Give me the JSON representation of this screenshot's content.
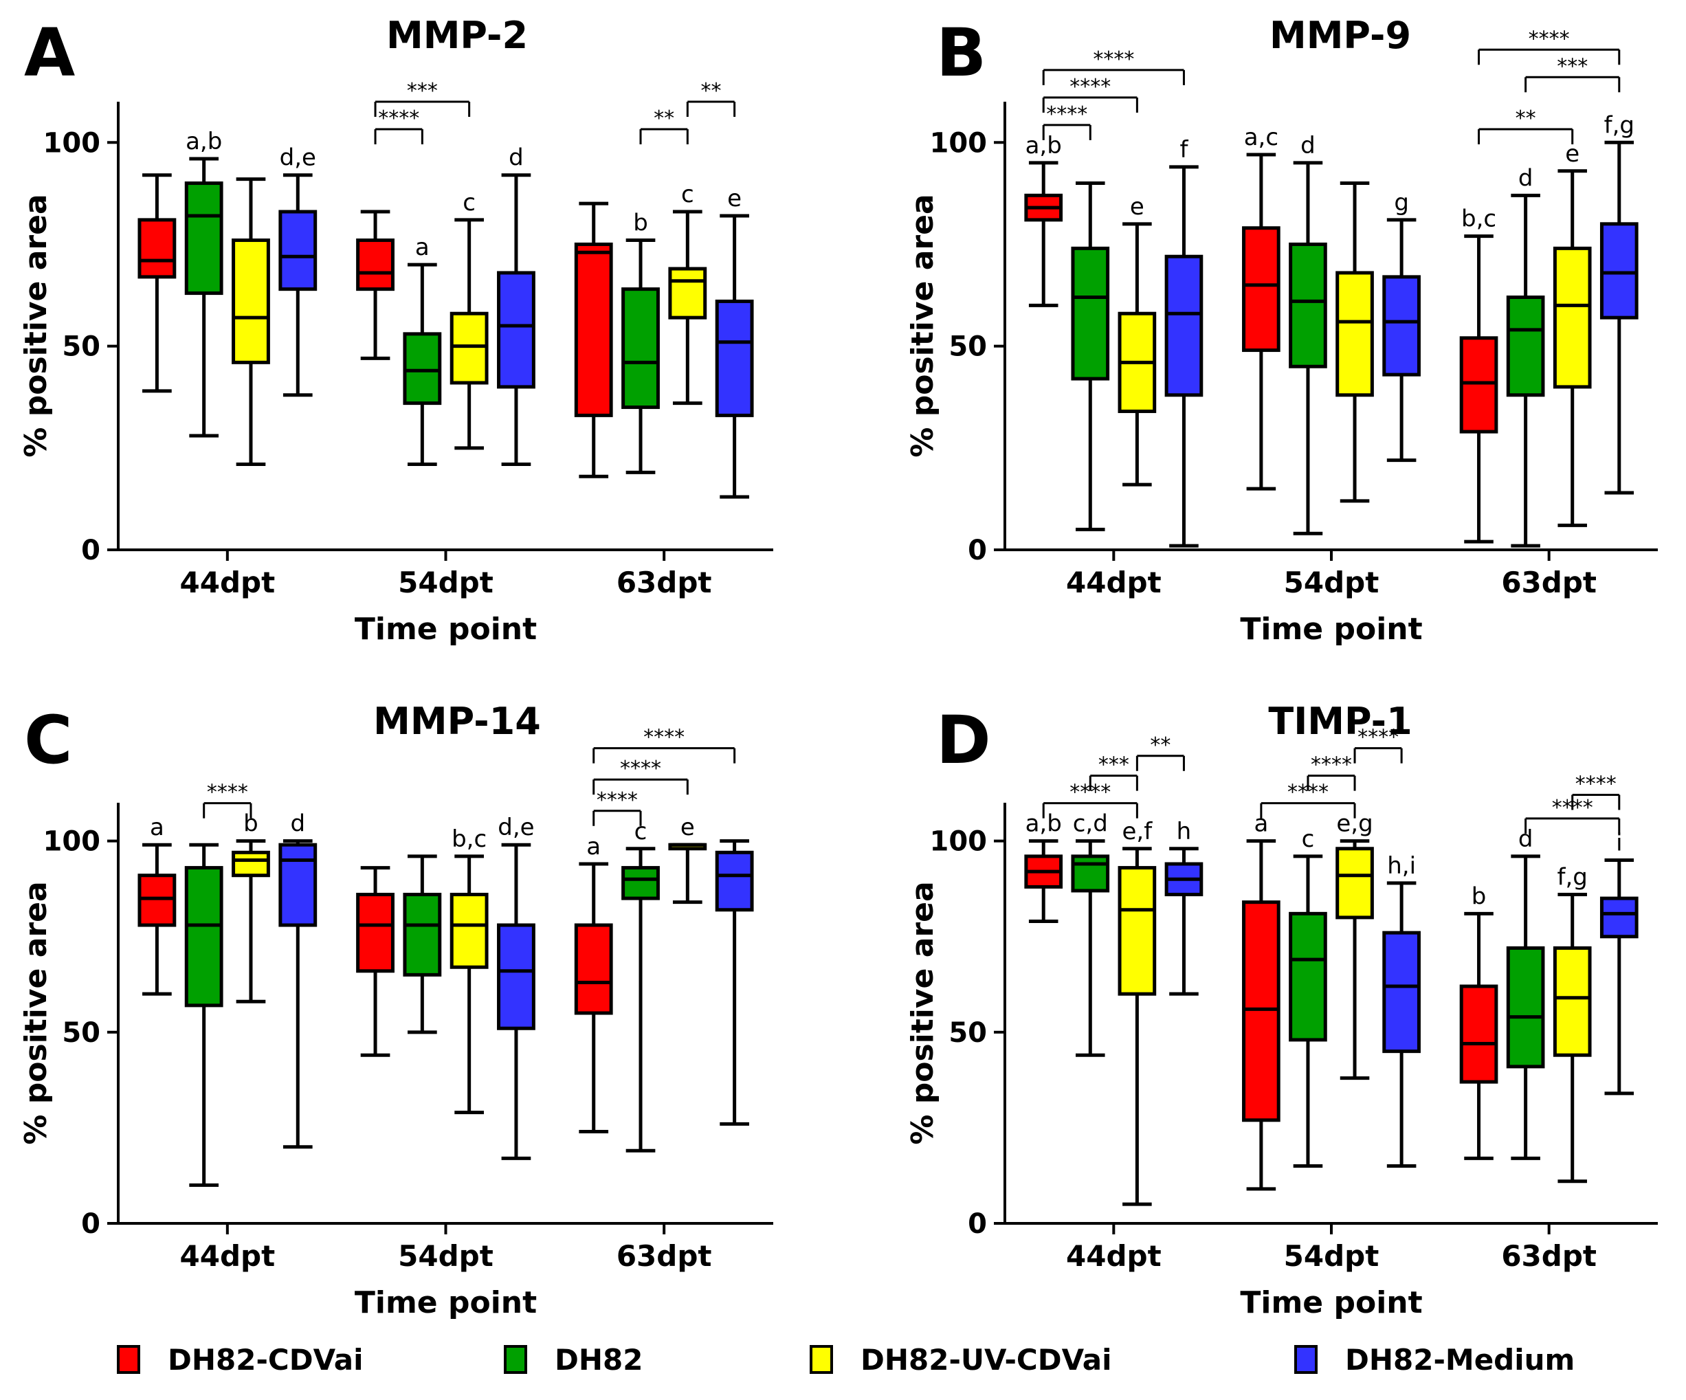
{
  "colors": {
    "DH82-CDVai": "#ff0000",
    "DH82": "#00a000",
    "DH82-UV-CDVai": "#ffff00",
    "DH82-Medium": "#3333ff"
  },
  "legend": [
    {
      "name": "DH82-CDVai",
      "color": "#ff0000"
    },
    {
      "name": "DH82",
      "color": "#00a000"
    },
    {
      "name": "DH82-UV-CDVai",
      "color": "#ffff00"
    },
    {
      "name": "DH82-Medium",
      "color": "#3333ff"
    }
  ],
  "chart_data": [
    {
      "type": "boxplot",
      "panel": "A",
      "title": "MMP-2",
      "xlabel": "Time point",
      "ylabel": "% positive area",
      "ylim": [
        0,
        110
      ],
      "yticks": [
        0,
        50,
        100
      ],
      "categories": [
        "44dpt",
        "54dpt",
        "63dpt"
      ],
      "series_names": [
        "DH82-CDVai",
        "DH82",
        "DH82-UV-CDVai",
        "DH82-Medium"
      ],
      "groups": [
        {
          "category": "44dpt",
          "boxes": [
            {
              "series": "DH82-CDVai",
              "min": 39,
              "q1": 67,
              "median": 71,
              "q3": 81,
              "max": 92,
              "label": ""
            },
            {
              "series": "DH82",
              "min": 28,
              "q1": 63,
              "median": 82,
              "q3": 90,
              "max": 96,
              "label": "a,b"
            },
            {
              "series": "DH82-UV-CDVai",
              "min": 21,
              "q1": 46,
              "median": 57,
              "q3": 76,
              "max": 91,
              "label": ""
            },
            {
              "series": "DH82-Medium",
              "min": 38,
              "q1": 64,
              "median": 72,
              "q3": 83,
              "max": 92,
              "label": "d,e"
            }
          ]
        },
        {
          "category": "54dpt",
          "boxes": [
            {
              "series": "DH82-CDVai",
              "min": 47,
              "q1": 64,
              "median": 68,
              "q3": 76,
              "max": 83,
              "label": ""
            },
            {
              "series": "DH82",
              "min": 21,
              "q1": 36,
              "median": 44,
              "q3": 53,
              "max": 70,
              "label": "a"
            },
            {
              "series": "DH82-UV-CDVai",
              "min": 25,
              "q1": 41,
              "median": 50,
              "q3": 58,
              "max": 81,
              "label": "c"
            },
            {
              "series": "DH82-Medium",
              "min": 21,
              "q1": 40,
              "median": 55,
              "q3": 68,
              "max": 92,
              "label": "d"
            }
          ]
        },
        {
          "category": "63dpt",
          "boxes": [
            {
              "series": "DH82-CDVai",
              "min": 18,
              "q1": 33,
              "median": 73,
              "q3": 75,
              "max": 85,
              "label": ""
            },
            {
              "series": "DH82",
              "min": 19,
              "q1": 35,
              "median": 46,
              "q3": 64,
              "max": 76,
              "label": "b"
            },
            {
              "series": "DH82-UV-CDVai",
              "min": 36,
              "q1": 57,
              "median": 66,
              "q3": 69,
              "max": 83,
              "label": "c"
            },
            {
              "series": "DH82-Medium",
              "min": 13,
              "q1": 33,
              "median": 51,
              "q3": 61,
              "max": 82,
              "label": "e"
            }
          ]
        }
      ],
      "significance": [
        {
          "from": [
            1,
            0
          ],
          "to": [
            1,
            1
          ],
          "stars": "****"
        },
        {
          "from": [
            1,
            0
          ],
          "to": [
            1,
            2
          ],
          "stars": "***"
        },
        {
          "from": [
            2,
            1
          ],
          "to": [
            2,
            2
          ],
          "stars": "**"
        },
        {
          "from": [
            2,
            2
          ],
          "to": [
            2,
            3
          ],
          "stars": "**"
        }
      ]
    },
    {
      "type": "boxplot",
      "panel": "B",
      "title": "MMP-9",
      "xlabel": "Time point",
      "ylabel": "% positive area",
      "ylim": [
        0,
        110
      ],
      "yticks": [
        0,
        50,
        100
      ],
      "categories": [
        "44dpt",
        "54dpt",
        "63dpt"
      ],
      "series_names": [
        "DH82-CDVai",
        "DH82",
        "DH82-UV-CDVai",
        "DH82-Medium"
      ],
      "groups": [
        {
          "category": "44dpt",
          "boxes": [
            {
              "series": "DH82-CDVai",
              "min": 60,
              "q1": 81,
              "median": 84,
              "q3": 87,
              "max": 95,
              "label": "a,b"
            },
            {
              "series": "DH82",
              "min": 5,
              "q1": 42,
              "median": 62,
              "q3": 74,
              "max": 90,
              "label": ""
            },
            {
              "series": "DH82-UV-CDVai",
              "min": 16,
              "q1": 34,
              "median": 46,
              "q3": 58,
              "max": 80,
              "label": "e"
            },
            {
              "series": "DH82-Medium",
              "min": 1,
              "q1": 38,
              "median": 58,
              "q3": 72,
              "max": 94,
              "label": "f"
            }
          ]
        },
        {
          "category": "54dpt",
          "boxes": [
            {
              "series": "DH82-CDVai",
              "min": 15,
              "q1": 49,
              "median": 65,
              "q3": 79,
              "max": 97,
              "label": "a,c"
            },
            {
              "series": "DH82",
              "min": 4,
              "q1": 45,
              "median": 61,
              "q3": 75,
              "max": 95,
              "label": "d"
            },
            {
              "series": "DH82-UV-CDVai",
              "min": 12,
              "q1": 38,
              "median": 56,
              "q3": 68,
              "max": 90,
              "label": ""
            },
            {
              "series": "DH82-Medium",
              "min": 22,
              "q1": 43,
              "median": 56,
              "q3": 67,
              "max": 81,
              "label": "g"
            }
          ]
        },
        {
          "category": "63dpt",
          "boxes": [
            {
              "series": "DH82-CDVai",
              "min": 2,
              "q1": 29,
              "median": 41,
              "q3": 52,
              "max": 77,
              "label": "b,c"
            },
            {
              "series": "DH82",
              "min": 1,
              "q1": 38,
              "median": 54,
              "q3": 62,
              "max": 87,
              "label": "d"
            },
            {
              "series": "DH82-UV-CDVai",
              "min": 6,
              "q1": 40,
              "median": 60,
              "q3": 74,
              "max": 93,
              "label": "e"
            },
            {
              "series": "DH82-Medium",
              "min": 14,
              "q1": 57,
              "median": 68,
              "q3": 80,
              "max": 100,
              "label": "f,g"
            }
          ]
        }
      ],
      "significance": [
        {
          "from": [
            0,
            0
          ],
          "to": [
            0,
            1
          ],
          "stars": "****"
        },
        {
          "from": [
            0,
            0
          ],
          "to": [
            0,
            2
          ],
          "stars": "****"
        },
        {
          "from": [
            0,
            0
          ],
          "to": [
            0,
            3
          ],
          "stars": "****"
        },
        {
          "from": [
            2,
            0
          ],
          "to": [
            2,
            2
          ],
          "stars": "**"
        },
        {
          "from": [
            2,
            1
          ],
          "to": [
            2,
            3
          ],
          "stars": "***"
        },
        {
          "from": [
            2,
            0
          ],
          "to": [
            2,
            3
          ],
          "stars": "****"
        }
      ]
    },
    {
      "type": "boxplot",
      "panel": "C",
      "title": "MMP-14",
      "xlabel": "Time point",
      "ylabel": "% positive area",
      "ylim": [
        0,
        110
      ],
      "yticks": [
        0,
        50,
        100
      ],
      "categories": [
        "44dpt",
        "54dpt",
        "63dpt"
      ],
      "series_names": [
        "DH82-CDVai",
        "DH82",
        "DH82-UV-CDVai",
        "DH82-Medium"
      ],
      "groups": [
        {
          "category": "44dpt",
          "boxes": [
            {
              "series": "DH82-CDVai",
              "min": 60,
              "q1": 78,
              "median": 85,
              "q3": 91,
              "max": 99,
              "label": "a"
            },
            {
              "series": "DH82",
              "min": 10,
              "q1": 57,
              "median": 78,
              "q3": 93,
              "max": 99,
              "label": ""
            },
            {
              "series": "DH82-UV-CDVai",
              "min": 58,
              "q1": 91,
              "median": 95,
              "q3": 97,
              "max": 100,
              "label": "b"
            },
            {
              "series": "DH82-Medium",
              "min": 20,
              "q1": 78,
              "median": 95,
              "q3": 99,
              "max": 100,
              "label": "d"
            }
          ]
        },
        {
          "category": "54dpt",
          "boxes": [
            {
              "series": "DH82-CDVai",
              "min": 44,
              "q1": 66,
              "median": 78,
              "q3": 86,
              "max": 93,
              "label": ""
            },
            {
              "series": "DH82",
              "min": 50,
              "q1": 65,
              "median": 78,
              "q3": 86,
              "max": 96,
              "label": ""
            },
            {
              "series": "DH82-UV-CDVai",
              "min": 29,
              "q1": 67,
              "median": 78,
              "q3": 86,
              "max": 96,
              "label": "b,c"
            },
            {
              "series": "DH82-Medium",
              "min": 17,
              "q1": 51,
              "median": 66,
              "q3": 78,
              "max": 99,
              "label": "d,e"
            }
          ]
        },
        {
          "category": "63dpt",
          "boxes": [
            {
              "series": "DH82-CDVai",
              "min": 24,
              "q1": 55,
              "median": 63,
              "q3": 78,
              "max": 94,
              "label": "a"
            },
            {
              "series": "DH82",
              "min": 19,
              "q1": 85,
              "median": 90,
              "q3": 93,
              "max": 98,
              "label": "c"
            },
            {
              "series": "DH82-UV-CDVai",
              "min": 84,
              "q1": 98,
              "median": 99,
              "q3": 99,
              "max": 99,
              "label": "e"
            },
            {
              "series": "DH82-Medium",
              "min": 26,
              "q1": 82,
              "median": 91,
              "q3": 97,
              "max": 100,
              "label": ""
            }
          ]
        }
      ],
      "significance": [
        {
          "from": [
            0,
            1
          ],
          "to": [
            0,
            2
          ],
          "stars": "****"
        },
        {
          "from": [
            2,
            0
          ],
          "to": [
            2,
            1
          ],
          "stars": "****"
        },
        {
          "from": [
            2,
            0
          ],
          "to": [
            2,
            2
          ],
          "stars": "****"
        },
        {
          "from": [
            2,
            0
          ],
          "to": [
            2,
            3
          ],
          "stars": "****"
        }
      ]
    },
    {
      "type": "boxplot",
      "panel": "D",
      "title": "TIMP-1",
      "xlabel": "Time point",
      "ylabel": "% positive area",
      "ylim": [
        0,
        110
      ],
      "yticks": [
        0,
        50,
        100
      ],
      "categories": [
        "44dpt",
        "54dpt",
        "63dpt"
      ],
      "series_names": [
        "DH82-CDVai",
        "DH82",
        "DH82-UV-CDVai",
        "DH82-Medium"
      ],
      "groups": [
        {
          "category": "44dpt",
          "boxes": [
            {
              "series": "DH82-CDVai",
              "min": 79,
              "q1": 88,
              "median": 92,
              "q3": 96,
              "max": 100,
              "label": "a,b"
            },
            {
              "series": "DH82",
              "min": 44,
              "q1": 87,
              "median": 94,
              "q3": 96,
              "max": 100,
              "label": "c,d"
            },
            {
              "series": "DH82-UV-CDVai",
              "min": 5,
              "q1": 60,
              "median": 82,
              "q3": 93,
              "max": 98,
              "label": "e,f"
            },
            {
              "series": "DH82-Medium",
              "min": 60,
              "q1": 86,
              "median": 90,
              "q3": 94,
              "max": 98,
              "label": "h"
            }
          ]
        },
        {
          "category": "54dpt",
          "boxes": [
            {
              "series": "DH82-CDVai",
              "min": 9,
              "q1": 27,
              "median": 56,
              "q3": 84,
              "max": 100,
              "label": "a"
            },
            {
              "series": "DH82",
              "min": 15,
              "q1": 48,
              "median": 69,
              "q3": 81,
              "max": 96,
              "label": "c"
            },
            {
              "series": "DH82-UV-CDVai",
              "min": 38,
              "q1": 80,
              "median": 91,
              "q3": 98,
              "max": 100,
              "label": "e,g"
            },
            {
              "series": "DH82-Medium",
              "min": 15,
              "q1": 45,
              "median": 62,
              "q3": 76,
              "max": 89,
              "label": "h,i"
            }
          ]
        },
        {
          "category": "63dpt",
          "boxes": [
            {
              "series": "DH82-CDVai",
              "min": 17,
              "q1": 37,
              "median": 47,
              "q3": 62,
              "max": 81,
              "label": "b"
            },
            {
              "series": "DH82",
              "min": 17,
              "q1": 41,
              "median": 54,
              "q3": 72,
              "max": 96,
              "label": "d"
            },
            {
              "series": "DH82-UV-CDVai",
              "min": 11,
              "q1": 44,
              "median": 59,
              "q3": 72,
              "max": 86,
              "label": "f,g"
            },
            {
              "series": "DH82-Medium",
              "min": 34,
              "q1": 75,
              "median": 81,
              "q3": 85,
              "max": 95,
              "label": "i"
            }
          ]
        }
      ],
      "significance": [
        {
          "from": [
            0,
            0
          ],
          "to": [
            0,
            2
          ],
          "stars": "****"
        },
        {
          "from": [
            0,
            1
          ],
          "to": [
            0,
            2
          ],
          "stars": "***"
        },
        {
          "from": [
            0,
            2
          ],
          "to": [
            0,
            3
          ],
          "stars": "**"
        },
        {
          "from": [
            1,
            0
          ],
          "to": [
            1,
            2
          ],
          "stars": "****"
        },
        {
          "from": [
            1,
            1
          ],
          "to": [
            1,
            2
          ],
          "stars": "****"
        },
        {
          "from": [
            1,
            2
          ],
          "to": [
            1,
            3
          ],
          "stars": "****"
        },
        {
          "from": [
            2,
            1
          ],
          "to": [
            2,
            3
          ],
          "stars": "****"
        },
        {
          "from": [
            2,
            2
          ],
          "to": [
            2,
            3
          ],
          "stars": "****"
        }
      ]
    }
  ]
}
